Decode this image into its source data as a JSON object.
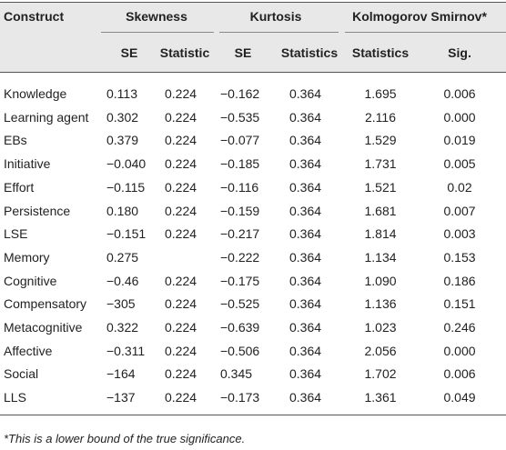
{
  "table": {
    "group_headers": [
      "Construct",
      "Skewness",
      "Kurtosis",
      "Kolmogorov Smirnov*"
    ],
    "sub_headers": [
      "SE",
      "Statistic",
      "SE",
      "Statistics",
      "Statistics",
      "Sig."
    ],
    "rows": [
      [
        "Knowledge",
        "0.113",
        "0.224",
        "−0.162",
        "0.364",
        "1.695",
        "0.006"
      ],
      [
        "Learning agent",
        "0.302",
        "0.224",
        "−0.535",
        "0.364",
        "2.116",
        "0.000"
      ],
      [
        "EBs",
        "0.379",
        "0.224",
        "−0.077",
        "0.364",
        "1.529",
        "0.019"
      ],
      [
        "Initiative",
        "−0.040",
        "0.224",
        "−0.185",
        "0.364",
        "1.731",
        "0.005"
      ],
      [
        "Effort",
        "−0.115",
        "0.224",
        "−0.116",
        "0.364",
        "1.521",
        "0.02"
      ],
      [
        "Persistence",
        "0.180",
        "0.224",
        "−0.159",
        "0.364",
        "1.681",
        "0.007"
      ],
      [
        "LSE",
        "−0.151",
        "0.224",
        "−0.217",
        "0.364",
        "1.814",
        "0.003"
      ],
      [
        "Memory",
        "0.275",
        null,
        "−0.222",
        "0.364",
        "1.134",
        "0.153"
      ],
      [
        "Cognitive",
        "−0.46",
        "0.224",
        "−0.175",
        "0.364",
        "1.090",
        "0.186"
      ],
      [
        "Compensatory",
        "−305",
        "0.224",
        "−0.525",
        "0.364",
        "1.136",
        "0.151"
      ],
      [
        "Metacognitive",
        "0.322",
        "0.224",
        "−0.639",
        "0.364",
        "1.023",
        "0.246"
      ],
      [
        "Affective",
        "−0.311",
        "0.224",
        "−0.506",
        "0.364",
        "2.056",
        "0.000"
      ],
      [
        "Social",
        "−164",
        "0.224",
        "0.345",
        "0.364",
        "1.702",
        "0.006"
      ],
      [
        "LLS",
        "−137",
        "0.224",
        "−0.173",
        "0.364",
        "1.361",
        "0.049"
      ]
    ],
    "footnote": "*This is a lower bound of the true significance."
  }
}
